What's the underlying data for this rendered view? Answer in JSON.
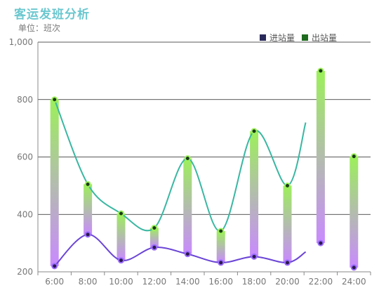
{
  "title": "客运发班分析",
  "subtitle": "单位：班次",
  "legend": [
    {
      "label": "进站量",
      "color": "#2a2a5a"
    },
    {
      "label": "出站量",
      "color": "#1f6b1f"
    }
  ],
  "chart_data": {
    "type": "bar",
    "categories": [
      "6:00",
      "8:00",
      "10:00",
      "12:00",
      "14:00",
      "16:00",
      "18:00",
      "20:00",
      "22:00",
      "24:00"
    ],
    "ylim": [
      200,
      1000
    ],
    "yticks": [
      "200",
      "400",
      "600",
      "800",
      "1,000"
    ],
    "grid": true,
    "series": [
      {
        "name": "进站量",
        "values": [
          220,
          330,
          240,
          285,
          262,
          232,
          253,
          232,
          300,
          215
        ],
        "color": "#6b45d6"
      },
      {
        "name": "出站量",
        "values": [
          800,
          505,
          403,
          353,
          595,
          342,
          690,
          500,
          900,
          602
        ],
        "color": "#3ab7a2"
      }
    ],
    "colors": {
      "bar_top": "#9cf05a",
      "bar_bottom": "#c98aff",
      "axis": "#888888",
      "grid": "#222222"
    }
  }
}
